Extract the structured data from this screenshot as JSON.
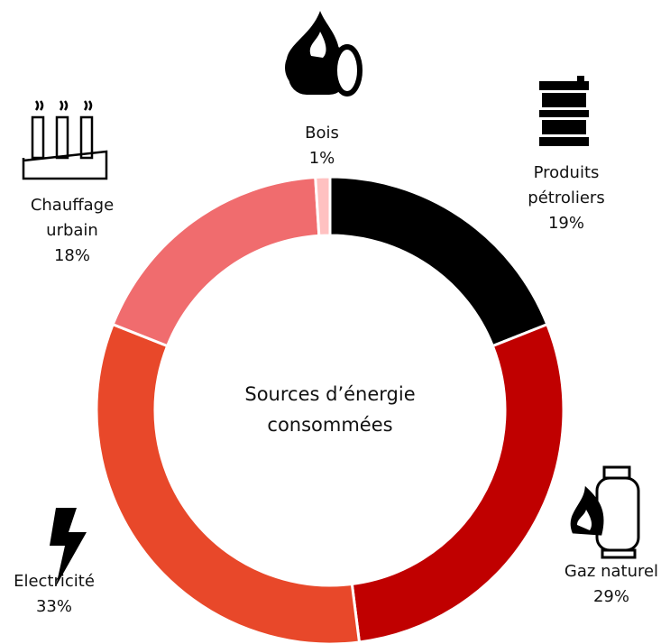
{
  "chart_data": {
    "type": "donut",
    "title": "Sources d’énergie consommées",
    "categories": [
      "Produits pétroliers",
      "Gaz naturel",
      "Electricité",
      "Chauffage urbain",
      "Bois"
    ],
    "values": [
      19,
      29,
      33,
      18,
      1
    ],
    "value_labels": [
      "19%",
      "29%",
      "33%",
      "18%",
      "1%"
    ],
    "colors": [
      "#000000",
      "#c00000",
      "#e8482a",
      "#f06c6e",
      "#ffc1c1"
    ]
  }
}
